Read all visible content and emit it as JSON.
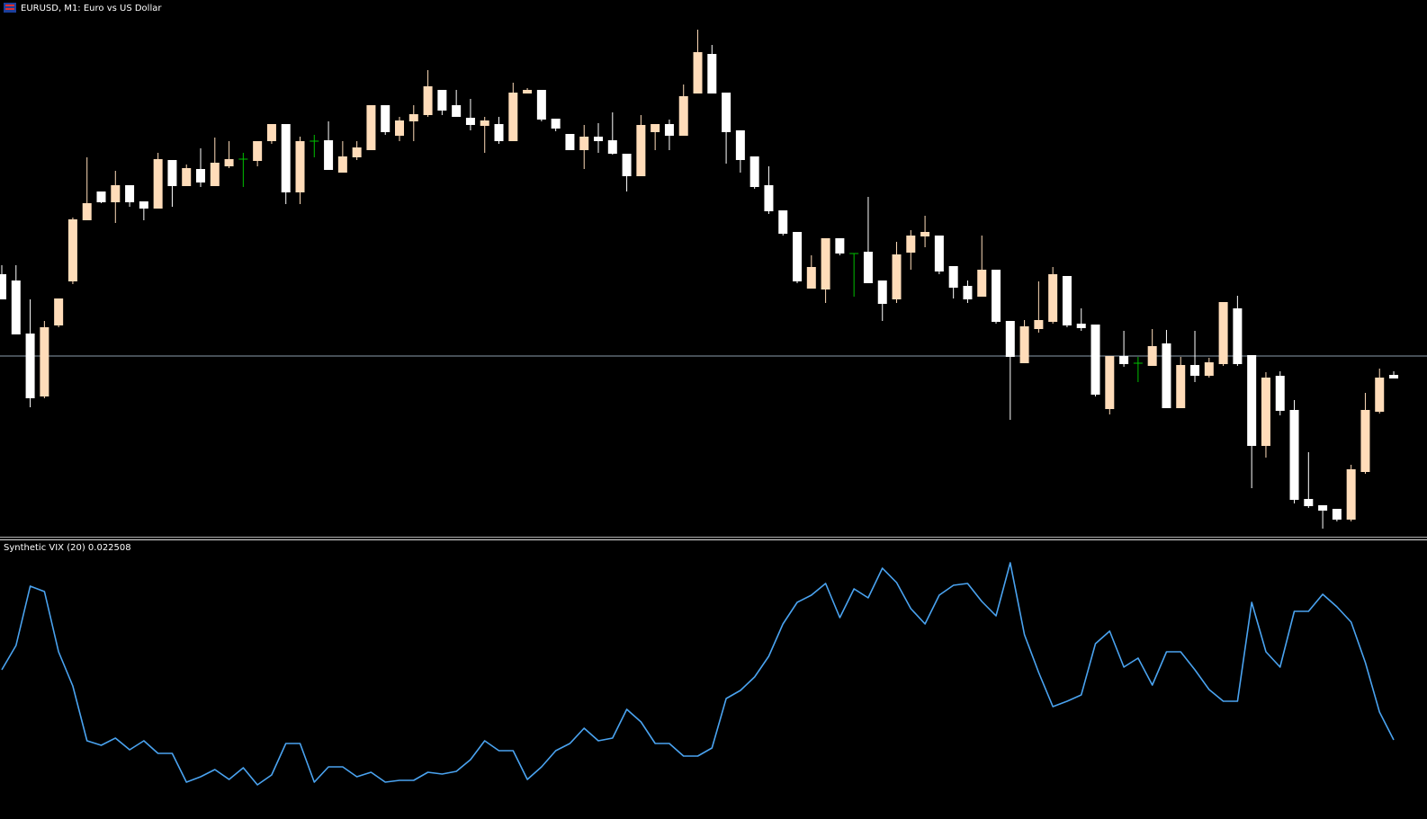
{
  "chart_data": [
    {
      "type": "candlestick",
      "title": "EURUSD, M1:  Euro vs US Dollar",
      "up_color": "#ffdcb9",
      "down_color": "#ffffff",
      "doji_color": "#00c000",
      "ylim": [
        0,
        597
      ],
      "price_line": 201,
      "price_line_color": "#8c9cac",
      "open": [
        292,
        285,
        226,
        156,
        235,
        284,
        352,
        384,
        372,
        391,
        373,
        365,
        419,
        390,
        409,
        390,
        412,
        420,
        418,
        440,
        459,
        383,
        440,
        441,
        405,
        422,
        430,
        480,
        446,
        462,
        469,
        497,
        480,
        466,
        457,
        459,
        440,
        493,
        497,
        465,
        448,
        430,
        445,
        441,
        426,
        401,
        450,
        459,
        446,
        493,
        537,
        494,
        452,
        423,
        391,
        363,
        339,
        276,
        275,
        332,
        315,
        317,
        285,
        264,
        316,
        334,
        335,
        301,
        279,
        267,
        297,
        240,
        193,
        231,
        239,
        290,
        237,
        236,
        142,
        201,
        193,
        190,
        215,
        143,
        191,
        179,
        192,
        254,
        202,
        101,
        179,
        141,
        42,
        35,
        31,
        19,
        72,
        139,
        180
      ],
      "high": [
        302,
        302,
        264,
        240,
        265,
        355,
        422,
        384,
        407,
        391,
        373,
        427,
        419,
        414,
        432,
        444,
        440,
        427,
        440,
        459,
        459,
        445,
        447,
        462,
        440,
        440,
        480,
        480,
        467,
        480,
        519,
        497,
        497,
        487,
        467,
        467,
        505,
        499,
        497,
        465,
        448,
        458,
        460,
        472,
        426,
        469,
        459,
        464,
        503,
        564,
        547,
        494,
        452,
        423,
        412,
        363,
        339,
        313,
        332,
        332,
        315,
        378,
        285,
        328,
        341,
        357,
        335,
        301,
        285,
        335,
        297,
        240,
        241,
        284,
        300,
        290,
        254,
        236,
        201,
        229,
        200,
        231,
        230,
        200,
        229,
        199,
        261,
        268,
        202,
        183,
        184,
        152,
        94,
        35,
        31,
        80,
        160,
        187,
        184
      ],
      "low": [
        264,
        225,
        144,
        154,
        233,
        281,
        352,
        371,
        349,
        367,
        352,
        365,
        367,
        390,
        389,
        390,
        410,
        389,
        412,
        437,
        370,
        370,
        422,
        408,
        405,
        419,
        430,
        447,
        440,
        440,
        467,
        469,
        467,
        452,
        427,
        437,
        440,
        493,
        462,
        451,
        430,
        409,
        427,
        425,
        384,
        401,
        430,
        430,
        446,
        493,
        493,
        415,
        405,
        387,
        359,
        335,
        282,
        276,
        260,
        313,
        267,
        282,
        240,
        260,
        297,
        322,
        292,
        265,
        260,
        267,
        237,
        130,
        193,
        227,
        237,
        233,
        229,
        156,
        136,
        189,
        172,
        190,
        143,
        143,
        172,
        177,
        190,
        190,
        54,
        88,
        135,
        37,
        32,
        9,
        17,
        17,
        70,
        137,
        176
      ],
      "close": [
        264,
        225,
        154,
        233,
        265,
        353,
        371,
        372,
        391,
        372,
        365,
        420,
        390,
        410,
        394,
        416,
        420,
        420,
        440,
        459,
        383,
        440,
        440,
        408,
        423,
        433,
        480,
        450,
        463,
        470,
        501,
        474,
        467,
        458,
        463,
        440,
        494,
        497,
        464,
        454,
        430,
        445,
        440,
        426,
        401,
        458,
        459,
        446,
        490,
        539,
        493,
        450,
        419,
        389,
        362,
        337,
        284,
        300,
        332,
        315,
        315,
        282,
        259,
        314,
        335,
        339,
        295,
        277,
        264,
        297,
        239,
        200,
        234,
        241,
        292,
        235,
        232,
        158,
        201,
        192,
        193,
        212,
        143,
        191,
        179,
        194,
        261,
        192,
        101,
        177,
        140,
        41,
        34,
        29,
        19,
        75,
        141,
        177,
        176
      ]
    },
    {
      "type": "line",
      "title": "Synthetic VIX (20) 0.022508",
      "color": "#4aa3f0",
      "ylim": [
        0,
        311
      ],
      "values": [
        166,
        193,
        259,
        253,
        186,
        148,
        87,
        82,
        90,
        77,
        87,
        73,
        73,
        41,
        47,
        55,
        44,
        57,
        38,
        49,
        84,
        84,
        41,
        58,
        58,
        47,
        52,
        41,
        43,
        43,
        52,
        50,
        53,
        66,
        87,
        76,
        76,
        44,
        58,
        76,
        84,
        101,
        87,
        90,
        122,
        108,
        84,
        84,
        70,
        70,
        79,
        134,
        143,
        158,
        181,
        217,
        241,
        249,
        262,
        224,
        256,
        246,
        279,
        263,
        234,
        217,
        249,
        260,
        262,
        242,
        226,
        285,
        205,
        163,
        125,
        131,
        138,
        195,
        209,
        169,
        179,
        149,
        186,
        186,
        166,
        144,
        131,
        131,
        241,
        186,
        169,
        231,
        231,
        250,
        236,
        219,
        174,
        119,
        88
      ]
    }
  ]
}
